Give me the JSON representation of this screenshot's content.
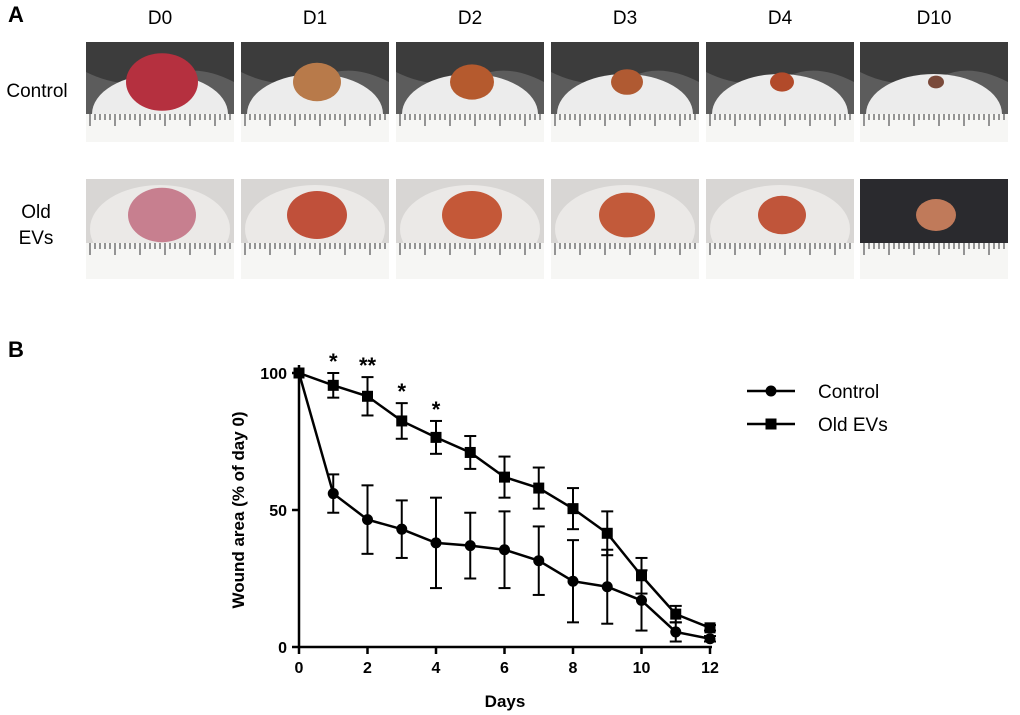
{
  "panel_a": {
    "letter": "A",
    "days": [
      "D0",
      "D1",
      "D2",
      "D3",
      "D4",
      "D10"
    ],
    "rows": [
      {
        "label_line1": "Control",
        "label_line2": ""
      },
      {
        "label_line1": "Old",
        "label_line2": "EVs"
      }
    ]
  },
  "panel_b": {
    "letter": "B"
  },
  "chart_data": {
    "type": "line",
    "xlabel": "Days",
    "ylabel": "Wound area (% of day 0)",
    "xlim": [
      0,
      12
    ],
    "ylim": [
      0,
      100
    ],
    "xticks": [
      0,
      2,
      4,
      6,
      8,
      10,
      12
    ],
    "yticks": [
      0,
      50,
      100
    ],
    "grid": false,
    "legend": "top-right",
    "series": [
      {
        "name": "Control",
        "marker": "circle",
        "x": [
          0,
          1,
          2,
          3,
          4,
          5,
          6,
          7,
          8,
          9,
          10,
          11,
          12
        ],
        "y": [
          100,
          56,
          46.5,
          43,
          38,
          37,
          35.5,
          31.5,
          24,
          22,
          17,
          5.5,
          3
        ],
        "err": [
          0,
          7,
          12.5,
          10.5,
          16.5,
          12,
          14,
          12.5,
          15,
          13.5,
          11,
          3.5,
          1
        ]
      },
      {
        "name": "Old EVs",
        "marker": "square",
        "x": [
          0,
          1,
          2,
          3,
          4,
          5,
          6,
          7,
          8,
          9,
          10,
          11,
          12
        ],
        "y": [
          100,
          95.5,
          91.5,
          82.5,
          76.5,
          71,
          62,
          58,
          50.5,
          41.5,
          26,
          12,
          7
        ],
        "err": [
          0,
          4.5,
          7,
          6.5,
          6,
          6,
          7.5,
          7.5,
          7.5,
          8,
          6.5,
          3,
          1
        ]
      }
    ],
    "annotations": [
      {
        "x": 1,
        "text": "*"
      },
      {
        "x": 2,
        "text": "**"
      },
      {
        "x": 3,
        "text": "*"
      },
      {
        "x": 4,
        "text": "*"
      }
    ]
  }
}
